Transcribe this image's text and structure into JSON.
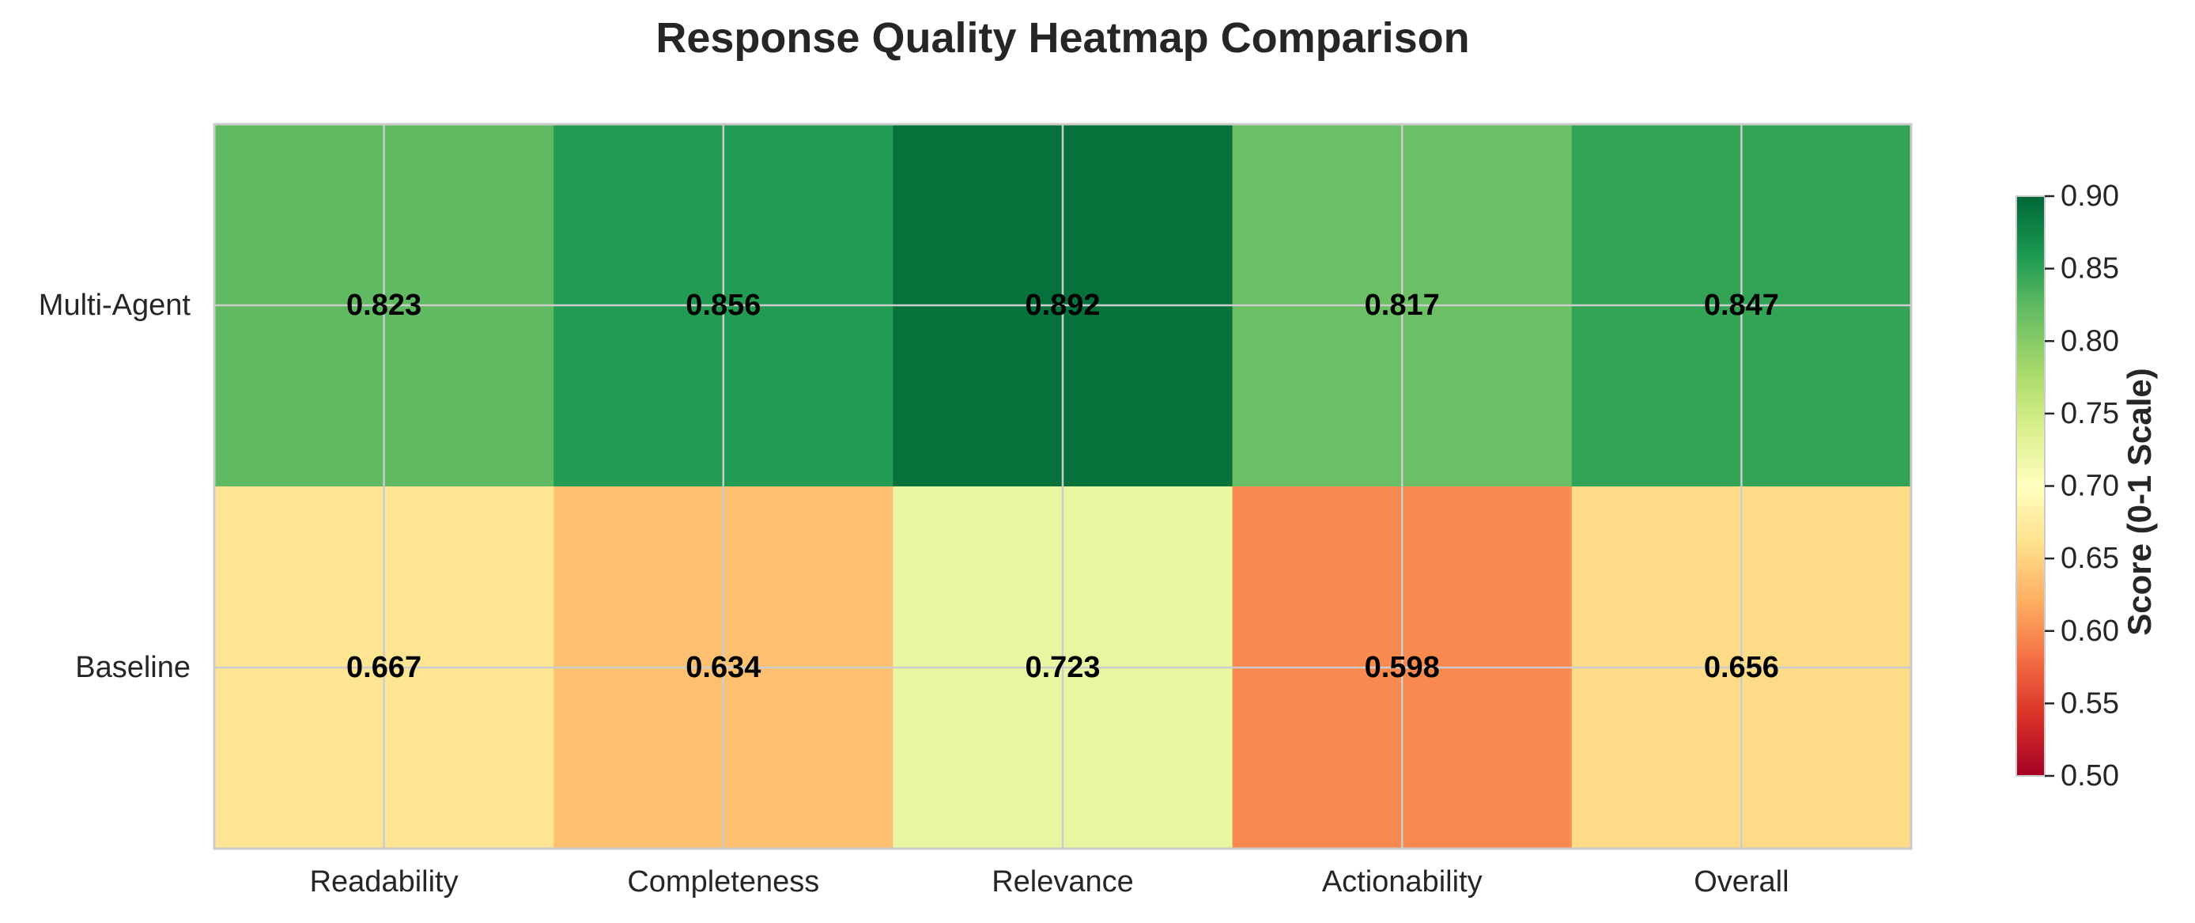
{
  "chart_data": {
    "type": "heatmap",
    "title": "Response Quality Heatmap Comparison",
    "rows": [
      "Multi-Agent",
      "Baseline"
    ],
    "columns": [
      "Readability",
      "Completeness",
      "Relevance",
      "Actionability",
      "Overall"
    ],
    "values": [
      [
        0.823,
        0.856,
        0.892,
        0.817,
        0.847
      ],
      [
        0.667,
        0.634,
        0.723,
        0.598,
        0.656
      ]
    ],
    "value_labels": [
      [
        "0.823",
        "0.856",
        "0.892",
        "0.817",
        "0.847"
      ],
      [
        "0.667",
        "0.634",
        "0.723",
        "0.598",
        "0.656"
      ]
    ],
    "colormap": "RdYlGn",
    "vmin": 0.5,
    "vmax": 0.9,
    "colorbar": {
      "label": "Score (0-1 Scale)",
      "ticks": [
        0.5,
        0.55,
        0.6,
        0.65,
        0.7,
        0.75,
        0.8,
        0.85,
        0.9
      ],
      "tick_labels": [
        "0.50",
        "0.55",
        "0.60",
        "0.65",
        "0.70",
        "0.75",
        "0.80",
        "0.85",
        "0.90"
      ]
    },
    "grid": true
  }
}
